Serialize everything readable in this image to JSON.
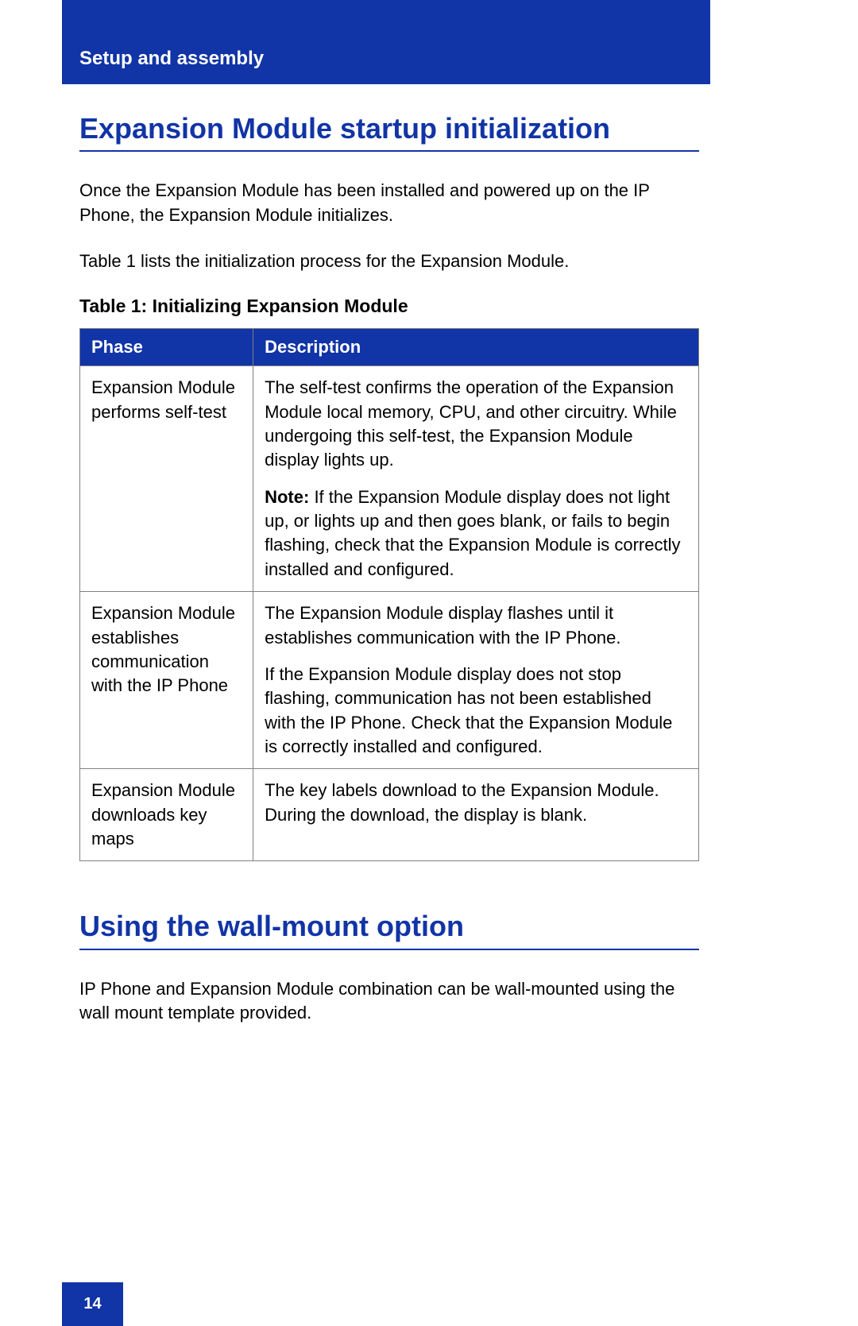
{
  "colors": {
    "brand_blue": "#1134a6",
    "text_black": "#000000",
    "white": "#ffffff",
    "border_gray": "#808080"
  },
  "typography": {
    "body_fontsize": 22,
    "heading_fontsize": 36,
    "header_fontsize": 24,
    "caption_fontsize": 23,
    "pagenum_fontsize": 20
  },
  "header": {
    "chapter_title": "Setup and assembly"
  },
  "section1": {
    "heading": "Expansion Module startup initialization",
    "para1": "Once the Expansion Module has been installed and powered up on the IP Phone, the Expansion Module initializes.",
    "para2": "Table 1 lists the initialization process for the Expansion Module."
  },
  "table1": {
    "type": "table",
    "caption": "Table 1: Initializing Expansion Module",
    "columns": [
      "Phase",
      "Description"
    ],
    "column_widths": [
      "28%",
      "72%"
    ],
    "header_bg": "#1134a6",
    "header_fg": "#ffffff",
    "border_color": "#808080",
    "rows": [
      {
        "phase": "Expansion Module performs self-test",
        "desc_p1": "The self-test confirms the operation of the Expansion Module local memory, CPU, and other circuitry. While undergoing this self-test, the Expansion Module display lights up.",
        "note_label": "Note:",
        "desc_note": " If the Expansion Module display does not light up, or lights up and then goes blank, or fails to begin flashing, check that the Expansion Module is correctly installed and configured."
      },
      {
        "phase": "Expansion Module establishes communication with the IP Phone",
        "desc_p1": "The Expansion Module display flashes until it establishes communication with the IP Phone.",
        "desc_p2": "If the Expansion Module display does not stop flashing, communication has not been established with the IP Phone. Check that the Expansion Module is correctly installed and configured."
      },
      {
        "phase": "Expansion Module downloads key maps",
        "desc_p1": "The key labels download to the Expansion Module. During the download, the display is blank."
      }
    ]
  },
  "section2": {
    "heading": "Using the wall-mount option",
    "para1": "IP Phone and Expansion Module combination can be wall-mounted using the wall mount template provided."
  },
  "footer": {
    "page_number": "14"
  }
}
